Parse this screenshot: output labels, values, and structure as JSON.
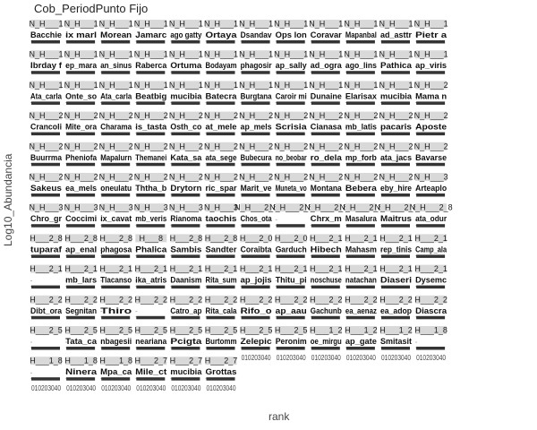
{
  "chart_data": {
    "type": "scatter",
    "title": "Cob_PeriodPunto Fijo",
    "xlabel": "rank",
    "ylabel": "Log10_Abundancia",
    "x_ticks": [
      "0",
      "10",
      "20",
      "30",
      "40"
    ],
    "grid": false,
    "facet_rows": 11,
    "facet_cols": 12,
    "panels": [
      {
        "strip": "N_H___1",
        "species": "Bacchie"
      },
      {
        "strip": "N_H___1",
        "species": "ix marl"
      },
      {
        "strip": "N_H___1",
        "species": "Morean"
      },
      {
        "strip": "N_H___1",
        "species": "Jamarc"
      },
      {
        "strip": "N_H___1",
        "species": "ago gatty"
      },
      {
        "strip": "N_H___1",
        "species": "Ortaya"
      },
      {
        "strip": "N_H___1",
        "species": "Dsandav"
      },
      {
        "strip": "N_H___1",
        "species": "Ops lon"
      },
      {
        "strip": "N_H___1",
        "species": "Coravar"
      },
      {
        "strip": "N_H___1",
        "species": "Mapanbal"
      },
      {
        "strip": "N_H___1",
        "species": "ad_asttr"
      },
      {
        "strip": "N_H___1",
        "species": "Pietr a"
      },
      {
        "strip": "N_H___1",
        "species": "Ibrday f"
      },
      {
        "strip": "N_H___1",
        "species": "ep_mara"
      },
      {
        "strip": "N_H___1",
        "species": "an_sinus"
      },
      {
        "strip": "N_H___1",
        "species": "Raberca"
      },
      {
        "strip": "N_H___1",
        "species": "Ortuma"
      },
      {
        "strip": "N_H___1",
        "species": "Bodayam"
      },
      {
        "strip": "N_H___1",
        "species": "phagosir"
      },
      {
        "strip": "N_H___1",
        "species": "ap_sally"
      },
      {
        "strip": "N_H___1",
        "species": "ad_ogra"
      },
      {
        "strip": "N_H___1",
        "species": "ago_lins"
      },
      {
        "strip": "N_H___1",
        "species": "Pathica"
      },
      {
        "strip": "N_H___1",
        "species": "ap_viris"
      },
      {
        "strip": "N_H___1",
        "species": "Ata_carla"
      },
      {
        "strip": "N_H___1",
        "species": "Onte_so"
      },
      {
        "strip": "N_H___1",
        "species": "Ata_carla"
      },
      {
        "strip": "N_H___1",
        "species": "Beatbig"
      },
      {
        "strip": "N_H___1",
        "species": "mucibia"
      },
      {
        "strip": "N_H___1",
        "species": "Batecra"
      },
      {
        "strip": "N_H___1",
        "species": "Burgtana"
      },
      {
        "strip": "N_H___1",
        "species": "Caroir mi"
      },
      {
        "strip": "N_H___1",
        "species": "Dunaine"
      },
      {
        "strip": "N_H___1",
        "species": "Elarisax"
      },
      {
        "strip": "N_H___1",
        "species": "mucibia"
      },
      {
        "strip": "N_H___2",
        "species": "Mama n"
      },
      {
        "strip": "N_H___2",
        "species": "Crancoli"
      },
      {
        "strip": "N_H___2",
        "species": "Mite_ora"
      },
      {
        "strip": "N_H___2",
        "species": "Charama"
      },
      {
        "strip": "N_H___2",
        "species": "is_tasta"
      },
      {
        "strip": "N_H___2",
        "species": "Osth_co"
      },
      {
        "strip": "N_H___2",
        "species": "at_mele"
      },
      {
        "strip": "N_H___2",
        "species": "ap_mels"
      },
      {
        "strip": "N_H___2",
        "species": "Scrisia"
      },
      {
        "strip": "N_H___2",
        "species": "Cianasa"
      },
      {
        "strip": "N_H___2",
        "species": "mb_latis"
      },
      {
        "strip": "N_H___2",
        "species": "pacaris"
      },
      {
        "strip": "N_H___2",
        "species": "Aposte"
      },
      {
        "strip": "N_H___2",
        "species": "Buurrma"
      },
      {
        "strip": "N_H___2",
        "species": "Pheniofa"
      },
      {
        "strip": "N_H___2",
        "species": "Mapalurn"
      },
      {
        "strip": "N_H___2",
        "species": "Themanei"
      },
      {
        "strip": "N_H___2",
        "species": "Kata_sa"
      },
      {
        "strip": "N_H___2",
        "species": "ata_sege"
      },
      {
        "strip": "N_H___2",
        "species": "Bubecura"
      },
      {
        "strip": "N_H___2",
        "species": "no_beobar"
      },
      {
        "strip": "N_H___2",
        "species": "ro_dela"
      },
      {
        "strip": "N_H___2",
        "species": "mp_forb"
      },
      {
        "strip": "N_H___2",
        "species": "ata_jacs"
      },
      {
        "strip": "N_H___2",
        "species": "Bavarse"
      },
      {
        "strip": "N_H___2",
        "species": "Sakeus"
      },
      {
        "strip": "N_H___2",
        "species": "ea_mels"
      },
      {
        "strip": "N_H___2",
        "species": "oneulatu"
      },
      {
        "strip": "N_H___2",
        "species": "Ththa_b"
      },
      {
        "strip": "N_H___2",
        "species": "Drytorn"
      },
      {
        "strip": "N_H___2",
        "species": "ric_spar"
      },
      {
        "strip": "N_H___2",
        "species": "Marit_ve"
      },
      {
        "strip": "N_H___2",
        "species": "Muneta_vo"
      },
      {
        "strip": "N_H___2",
        "species": "Montana"
      },
      {
        "strip": "N_H___2",
        "species": "Bebera"
      },
      {
        "strip": "N_H___2",
        "species": "eby_hire"
      },
      {
        "strip": "N_H___3",
        "species": "Arteaplo"
      },
      {
        "strip": "N_H___3",
        "species": "Chro_gr"
      },
      {
        "strip": "N_H___3",
        "species": "Coccimi"
      },
      {
        "strip": "N_H___3",
        "species": "ix_cavat"
      },
      {
        "strip": "N_H___3",
        "species": "mb_veris"
      },
      {
        "strip": "N_H___3",
        "species": "Rianoma"
      },
      {
        "strip": "N_H___3",
        "species": "taochis"
      },
      {
        "strip": "N_H___2_8",
        "species": "Chos_ota"
      },
      {
        "strip": "N_H___2_8",
        "species": ""
      },
      {
        "strip": "N_H___2_8",
        "species": "Chrx_m"
      },
      {
        "strip": "N_H___2_8",
        "species": "Masalura"
      },
      {
        "strip": "N_H___2_8",
        "species": "Maitrus"
      },
      {
        "strip": "N_H___2_8",
        "species": "ata_odur"
      },
      {
        "strip": "H___2_8",
        "species": "tuparaf"
      },
      {
        "strip": "H___2_8",
        "species": "ap_enal"
      },
      {
        "strip": "H___2_8",
        "species": "phagosa"
      },
      {
        "strip": "H___8",
        "species": "Phalica"
      },
      {
        "strip": "H___2_8",
        "species": "Sambis"
      },
      {
        "strip": "H___2_8",
        "species": "Sandter"
      },
      {
        "strip": "H___2_0",
        "species": "Coraibta"
      },
      {
        "strip": "H___2_0",
        "species": "Garduch"
      },
      {
        "strip": "H___2_1",
        "species": "Hibech"
      },
      {
        "strip": "H___2_1",
        "species": "Mahasm"
      },
      {
        "strip": "H___2_1",
        "species": "rep_tinis"
      },
      {
        "strip": "H___2_1",
        "species": "Camp_ala"
      },
      {
        "strip": "H___2_1",
        "species": ""
      },
      {
        "strip": "H___2_1",
        "species": "mb_lars"
      },
      {
        "strip": "H___2_1",
        "species": "Tlacanso"
      },
      {
        "strip": "H___2_1",
        "species": "ika_atris"
      },
      {
        "strip": "H___2_1",
        "species": "Daanism"
      },
      {
        "strip": "H___2_1",
        "species": "Rita_sum"
      },
      {
        "strip": "H___2_1",
        "species": "ap_jojis"
      },
      {
        "strip": "H___2_1",
        "species": "Thitu_pi"
      },
      {
        "strip": "H___2_1",
        "species": "noschuse"
      },
      {
        "strip": "H___2_1",
        "species": "natachan"
      },
      {
        "strip": "H___2_1",
        "species": "Diaseri"
      },
      {
        "strip": "H___2_1",
        "species": "Dysemc"
      },
      {
        "strip": "H___2_2",
        "species": "Dibt_ora"
      },
      {
        "strip": "H___2_2",
        "species": "Segnitan"
      },
      {
        "strip": "H___2_2",
        "species": "Thiro"
      },
      {
        "strip": "H___2_2",
        "species": ""
      },
      {
        "strip": "H___2_2",
        "species": "Catro_ap"
      },
      {
        "strip": "H___2_2",
        "species": "Rita_cala"
      },
      {
        "strip": "H___2_2",
        "species": "Rifo_o"
      },
      {
        "strip": "H___2_2",
        "species": "ap_aau"
      },
      {
        "strip": "H___2_2",
        "species": "Gachunb"
      },
      {
        "strip": "H___2_2",
        "species": "ea_aenaz"
      },
      {
        "strip": "H___2_2",
        "species": "ea_adop"
      },
      {
        "strip": "H___2_2",
        "species": "Diascra"
      },
      {
        "strip": "H___2_5",
        "species": ""
      },
      {
        "strip": "H___2_5",
        "species": "Tata_ca"
      },
      {
        "strip": "H___2_5",
        "species": "nbagesii"
      },
      {
        "strip": "H___2_5",
        "species": "neariana"
      },
      {
        "strip": "H___2_5",
        "species": "Pcigta"
      },
      {
        "strip": "H___2_5",
        "species": "Burtomm"
      },
      {
        "strip": "H___2_5",
        "species": "Zelepic"
      },
      {
        "strip": "H___2_5",
        "species": "Peronim"
      },
      {
        "strip": "H___1_2",
        "species": "oe_mirgu"
      },
      {
        "strip": "H___1_2",
        "species": "ap_gate"
      },
      {
        "strip": "H___1_2",
        "species": "Smitasit"
      },
      {
        "strip": "H___1_8",
        "species": ""
      },
      {
        "strip": "H___1_8",
        "species": ""
      },
      {
        "strip": "H___1_8",
        "species": "Ninera"
      },
      {
        "strip": "H___1_8",
        "species": "Mpa_ca"
      },
      {
        "strip": "H___2_7",
        "species": "Mile_ct"
      },
      {
        "strip": "H___2_7",
        "species": "mucibia"
      },
      {
        "strip": "H___2_7",
        "species": "Grottas"
      }
    ]
  }
}
